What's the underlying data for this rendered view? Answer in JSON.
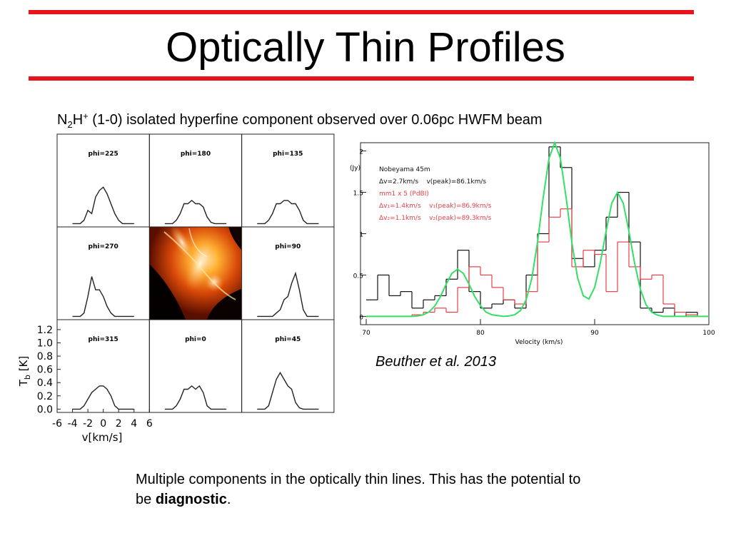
{
  "title": "Optically Thin Profiles",
  "subtitle": {
    "n": "N",
    "sub": "2",
    "h": "H",
    "sup": "+",
    "rest": " (1-0) isolated hyperfine component observed over 0.06pc HWFM beam"
  },
  "left": {
    "type": "line",
    "x": [
      -4,
      -3,
      -2.5,
      -2,
      -1.5,
      -1,
      -0.5,
      0,
      0.5,
      1,
      1.5,
      2,
      2.5,
      3,
      4
    ],
    "panels": [
      {
        "label": "phi=225",
        "values": [
          0,
          0,
          0.05,
          0.2,
          0.15,
          0.4,
          0.5,
          0.55,
          0.45,
          0.3,
          0.15,
          0.05,
          0,
          0,
          0
        ]
      },
      {
        "label": "phi=180",
        "values": [
          0,
          0,
          0.05,
          0.15,
          0.3,
          0.3,
          0.35,
          0.3,
          0.3,
          0.25,
          0.1,
          0.02,
          0,
          0,
          0
        ]
      },
      {
        "label": "phi=135",
        "values": [
          0,
          0,
          0.05,
          0.15,
          0.3,
          0.3,
          0.35,
          0.35,
          0.3,
          0.3,
          0.2,
          0.05,
          0,
          0,
          0
        ]
      },
      {
        "label": "phi=270",
        "values": [
          0,
          0,
          0.05,
          0.3,
          0.6,
          0.4,
          0.4,
          0.3,
          0.15,
          0.05,
          0,
          0,
          0,
          0,
          0
        ]
      },
      {
        "label": "phi=90",
        "values": [
          0,
          0,
          0,
          0,
          0.05,
          0.1,
          0.25,
          0.3,
          0.5,
          0.65,
          0.4,
          0.1,
          0,
          0,
          0
        ]
      },
      {
        "label": "phi=315",
        "values": [
          0,
          0,
          0.05,
          0.15,
          0.25,
          0.3,
          0.35,
          0.35,
          0.3,
          0.2,
          0.05,
          0,
          0,
          0,
          0
        ]
      },
      {
        "label": "phi=0",
        "values": [
          0,
          0,
          0.05,
          0.15,
          0.3,
          0.3,
          0.35,
          0.3,
          0.35,
          0.25,
          0.05,
          0,
          0,
          0,
          0
        ]
      },
      {
        "label": "phi=45",
        "values": [
          0,
          0,
          0.05,
          0.25,
          0.45,
          0.55,
          0.45,
          0.35,
          0.3,
          0.1,
          0.02,
          0,
          0,
          0,
          0
        ]
      }
    ],
    "xlim": [
      -6,
      6
    ],
    "ylim": [
      -0.05,
      1.35
    ],
    "xticks": [
      -6,
      -4,
      -2,
      0,
      2,
      4,
      6
    ],
    "yticks": [
      {
        "value": 0,
        "label": "0.0"
      },
      0.2,
      0.4,
      0.6,
      0.8,
      {
        "value": 1,
        "label": "1.0"
      },
      1.2
    ],
    "xlabel": "v[km/s]",
    "ylabel": {
      "main": "T",
      "sub": "b",
      "rest": " [K]"
    },
    "color": "#222222"
  },
  "right": {
    "type": "step",
    "xlabel": "Velocity (km/s)",
    "ylabel": "(Jy)",
    "xlim": [
      70,
      100
    ],
    "ylim": [
      -0.1,
      2.1
    ],
    "xticks": [
      70,
      80,
      90,
      100
    ],
    "yticks": [
      0,
      0.5,
      1,
      1.5,
      2
    ],
    "series": [
      {
        "color": "#111111",
        "step": 1,
        "x": [
          70,
          71,
          72,
          73,
          74,
          75,
          76,
          77,
          78,
          79,
          80,
          81,
          82,
          83,
          84,
          85,
          86,
          87,
          88,
          89,
          90,
          91,
          92,
          93,
          94,
          95,
          96,
          97,
          98,
          99
        ],
        "values": [
          0.2,
          0.5,
          0.25,
          0.3,
          0.1,
          0.2,
          0.25,
          0.45,
          0.8,
          0.3,
          0.1,
          0.15,
          0.2,
          0.1,
          0.5,
          1.0,
          2.05,
          1.8,
          0.7,
          0.6,
          0.8,
          1.2,
          1.5,
          0.9,
          0.1,
          0.05,
          0.1,
          0,
          0.05,
          0
        ]
      },
      {
        "color": "#e8404a",
        "step": 1,
        "x": [
          70,
          71,
          72,
          73,
          74,
          75,
          76,
          77,
          78,
          79,
          80,
          81,
          82,
          83,
          84,
          85,
          86,
          87,
          88,
          89,
          90,
          91,
          92,
          93,
          94,
          95,
          96,
          97,
          98,
          99
        ],
        "values": [
          0,
          0,
          0,
          0,
          0.02,
          0.05,
          0.1,
          0.05,
          0.35,
          0.6,
          0.5,
          0.35,
          0.2,
          0.15,
          0.3,
          0.9,
          1.2,
          1.3,
          0.6,
          0.8,
          0.75,
          0.3,
          0.9,
          0.6,
          0.45,
          0.5,
          0.15,
          0.05,
          0.02,
          0
        ]
      },
      {
        "color": "#33e066",
        "step": 0,
        "x": [
          70,
          70.5,
          71,
          71.5,
          72,
          72.5,
          73,
          73.5,
          74,
          74.5,
          75,
          75.5,
          76,
          76.5,
          77,
          77.5,
          78,
          78.5,
          79,
          79.5,
          80,
          80.5,
          81,
          81.5,
          82,
          82.5,
          83,
          83.5,
          84,
          84.5,
          85,
          85.5,
          86,
          86.5,
          87,
          87.5,
          88,
          88.5,
          89,
          89.5,
          90,
          90.5,
          91,
          91.5,
          92,
          92.5,
          93,
          93.5,
          94,
          94.5,
          95,
          95.5,
          96,
          96.5,
          97,
          97.5,
          98,
          98.5,
          99,
          99.5,
          100
        ],
        "values": [
          0,
          0,
          0,
          0,
          0,
          0,
          0,
          0,
          0,
          0.006,
          0.019,
          0.054,
          0.125,
          0.24,
          0.39,
          0.52,
          0.57,
          0.52,
          0.39,
          0.24,
          0.13,
          0.05,
          0.02,
          0.01,
          0,
          0.005,
          0.02,
          0.07,
          0.2,
          0.46,
          0.9,
          1.44,
          1.91,
          2.1,
          1.91,
          1.44,
          0.9,
          0.47,
          0.25,
          0.21,
          0.35,
          0.65,
          1.03,
          1.37,
          1.5,
          1.37,
          1.03,
          0.64,
          0.33,
          0.14,
          0.05,
          0.015,
          0,
          0,
          0,
          0,
          0,
          0,
          0,
          0,
          0
        ]
      }
    ],
    "legend": [
      {
        "text": "Nobeyama 45m",
        "color": "#111111"
      },
      {
        "text": "Δv=2.7km/s    v(peak)=86.1km/s",
        "color": "#111111"
      },
      {
        "text": "mm1 x 5 (PdBI)",
        "color": "#e8404a"
      },
      {
        "text": "Δv₁=1.4km/s    v₁(peak)=86.9km/s",
        "color": "#e8404a"
      },
      {
        "text": "Δv₂=1.1km/s    v₂(peak)=89.3km/s",
        "color": "#e8404a"
      }
    ]
  },
  "citation": "Beuther et al. 2013",
  "note": {
    "text": "Multiple components in the optically thin lines. This has the potential to be ",
    "bold": "diagnostic",
    "end": "."
  }
}
